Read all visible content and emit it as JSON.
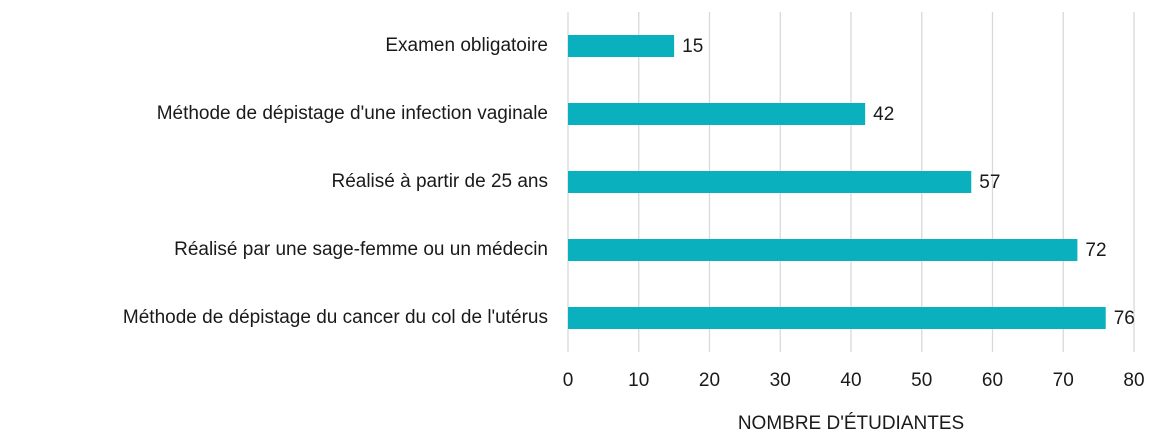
{
  "chart_data": {
    "type": "bar",
    "orientation": "horizontal",
    "xlabel": "NOMBRE D'ÉTUDIANTES",
    "categories": [
      "Examen obligatoire",
      "Méthode de dépistage d'une infection vaginale",
      "Réalisé à partir de 25 ans",
      "Réalisé par une sage-femme ou un médecin",
      "Méthode de dépistage du cancer du col de l'utérus"
    ],
    "values": [
      15,
      42,
      57,
      72,
      76
    ],
    "color": "#0ab0bd",
    "xlim": [
      0,
      80
    ],
    "xticks": [
      0,
      10,
      20,
      30,
      40,
      50,
      60,
      70,
      80
    ],
    "grid": true
  }
}
